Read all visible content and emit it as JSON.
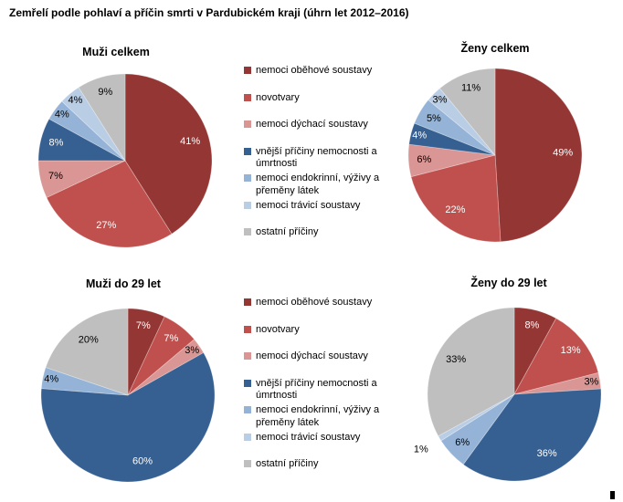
{
  "page_title": "Zemřelí podle pohlaví a příčin smrti v Pardubickém kraji (úhrn let 2012–2016)",
  "palette": {
    "circulatory": "#943634",
    "neoplasms": "#C0504D",
    "respiratory": "#D99694",
    "external": "#366092",
    "endocrine": "#95B3D7",
    "digestive": "#B9CDE5",
    "other": "#BFBFBF"
  },
  "legend": {
    "category_keys": [
      "circulatory",
      "neoplasms",
      "respiratory",
      "external",
      "endocrine",
      "digestive",
      "other"
    ],
    "categories": [
      "nemoci oběhové soustavy",
      "novotvary",
      "nemoci dýchací soustavy",
      "vnější příčiny nemocnosti a úmrtnosti",
      "nemoci endokrinní, výživy a přeměny látek",
      "nemoci trávicí soustavy",
      "ostatní příčiny"
    ],
    "shown_twice": true
  },
  "chart_data": [
    {
      "type": "pie",
      "title": "Muži celkem",
      "unit": "%",
      "start_angle_deg": 0,
      "direction": "clockwise",
      "categories": [
        "nemoci oběhové soustavy",
        "novotvary",
        "nemoci dýchací soustavy",
        "vnější příčiny nemocnosti a úmrtnosti",
        "nemoci endokrinní, výživy a přeměny látek",
        "nemoci trávicí soustavy",
        "ostatní příčiny"
      ],
      "values": [
        41,
        27,
        7,
        8,
        4,
        4,
        9
      ],
      "labels": [
        "41%",
        "27%",
        "7%",
        "8%",
        "4%",
        "4%",
        "9%"
      ]
    },
    {
      "type": "pie",
      "title": "Ženy celkem",
      "unit": "%",
      "start_angle_deg": 0,
      "direction": "clockwise",
      "categories": [
        "nemoci oběhové soustavy",
        "novotvary",
        "nemoci dýchací soustavy",
        "vnější příčiny nemocnosti a úmrtnosti",
        "nemoci endokrinní, výživy a přeměny látek",
        "nemoci trávicí soustavy",
        "ostatní příčiny"
      ],
      "values": [
        49,
        22,
        6,
        4,
        5,
        3,
        11
      ],
      "labels": [
        "49%",
        "22%",
        "6%",
        "4%",
        "5%",
        "3%",
        "11%"
      ]
    },
    {
      "type": "pie",
      "title": "Muži do 29 let",
      "unit": "%",
      "start_angle_deg": 0,
      "direction": "clockwise",
      "categories": [
        "nemoci oběhové soustavy",
        "novotvary",
        "nemoci dýchací soustavy",
        "vnější příčiny nemocnosti a úmrtnosti",
        "nemoci endokrinní, výživy a přeměny látek",
        "nemoci trávicí soustavy",
        "ostatní příčiny"
      ],
      "values": [
        7,
        7,
        3,
        60,
        4,
        0,
        20
      ],
      "labels": [
        "7%",
        "7%",
        "3%",
        "60%",
        "4%",
        "",
        "20%"
      ]
    },
    {
      "type": "pie",
      "title": "Ženy do 29 let",
      "unit": "%",
      "start_angle_deg": 0,
      "direction": "clockwise",
      "categories": [
        "nemoci oběhové soustavy",
        "novotvary",
        "nemoci dýchací soustavy",
        "vnější příčiny nemocnosti a úmrtnosti",
        "nemoci endokrinní, výživy a přeměny látek",
        "nemoci trávicí soustavy",
        "ostatní příčiny"
      ],
      "values": [
        8,
        13,
        3,
        36,
        6,
        1,
        33
      ],
      "labels": [
        "8%",
        "13%",
        "3%",
        "36%",
        "6%",
        "1%",
        "33%"
      ]
    }
  ]
}
